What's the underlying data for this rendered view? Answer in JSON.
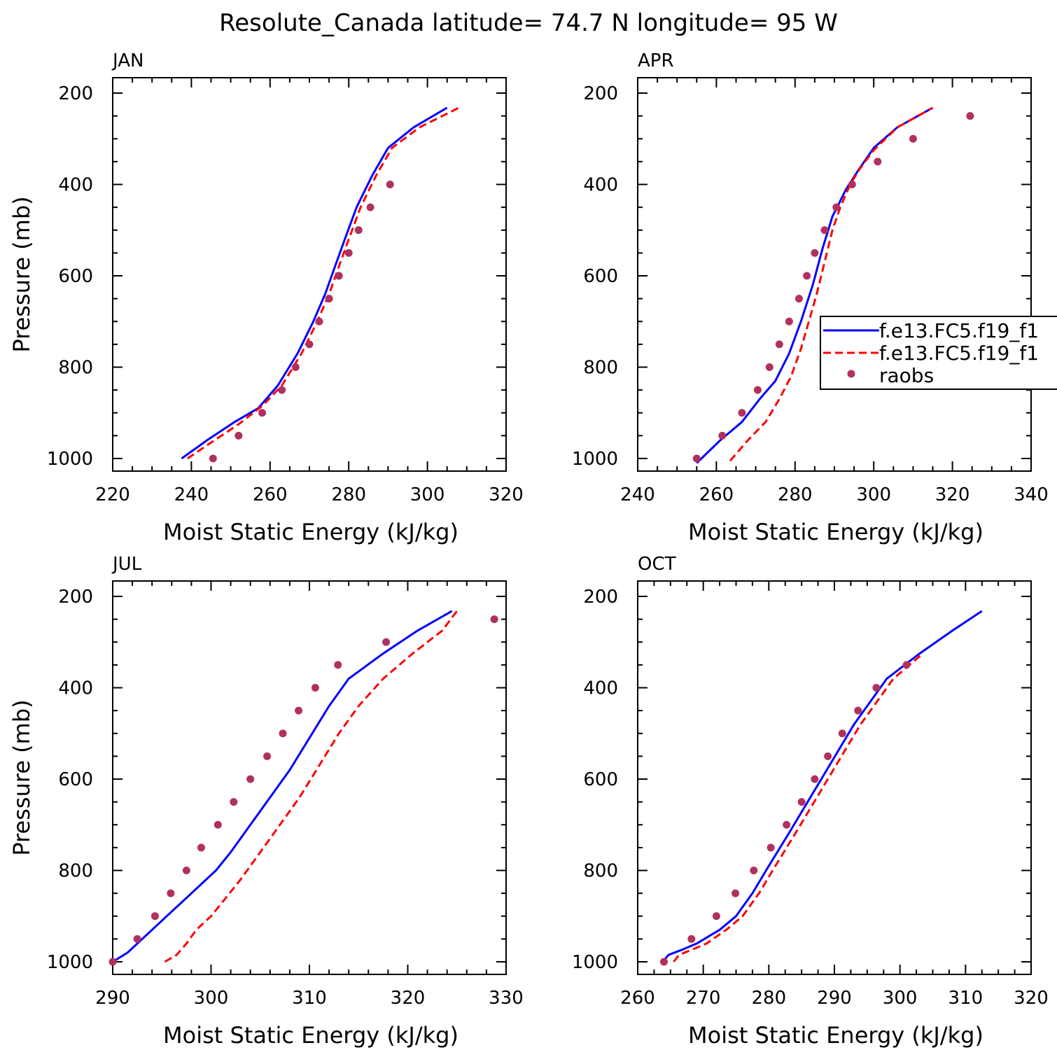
{
  "title": "Resolute_Canada  latitude= 74.7 N longitude= 95 W",
  "colors": {
    "model_a": "#0000ff",
    "model_b": "#ff0000",
    "raobs": "#b03060"
  },
  "legend": {
    "panel": "APR",
    "entries": [
      {
        "label": "f.e13.FC5.f19_f1",
        "style": "solid",
        "color": "#0000ff"
      },
      {
        "label": "f.e13.FC5.f19_f1",
        "style": "dashed",
        "color": "#ff0000"
      },
      {
        "label": "raobs",
        "style": "dot",
        "color": "#b03060"
      }
    ]
  },
  "chart_data": [
    {
      "type": "line",
      "panel_label": "JAN",
      "xlabel": "Moist Static Energy (kJ/kg)",
      "ylabel": "Pressure (mb)",
      "xlim": [
        220,
        320
      ],
      "ylim": [
        200,
        1000
      ],
      "xticks": [
        220,
        240,
        260,
        280,
        300,
        320
      ],
      "yticks": [
        200,
        400,
        600,
        800,
        1000
      ],
      "series": [
        {
          "style": "solid",
          "color": "#0000ff",
          "points": [
            [
              237.5,
              1000
            ],
            [
              244,
              960
            ],
            [
              251,
              920
            ],
            [
              257,
              890
            ],
            [
              262,
              840
            ],
            [
              267,
              770
            ],
            [
              271,
              700
            ],
            [
              274,
              640
            ],
            [
              276.5,
              580
            ],
            [
              279,
              520
            ],
            [
              282,
              450
            ],
            [
              286,
              380
            ],
            [
              290,
              320
            ],
            [
              296.5,
              275
            ],
            [
              305,
              232
            ]
          ]
        },
        {
          "style": "dashed",
          "color": "#ff0000",
          "points": [
            [
              239,
              1000
            ],
            [
              245,
              965
            ],
            [
              252,
              925
            ],
            [
              258,
              885
            ],
            [
              263,
              840
            ],
            [
              268,
              770
            ],
            [
              272,
              700
            ],
            [
              275,
              640
            ],
            [
              277.5,
              580
            ],
            [
              280,
              520
            ],
            [
              283,
              450
            ],
            [
              287,
              380
            ],
            [
              291,
              320
            ],
            [
              298,
              275
            ],
            [
              308,
              232
            ]
          ]
        },
        {
          "style": "dot",
          "color": "#b03060",
          "points": [
            [
              245.5,
              1000
            ],
            [
              252,
              950
            ],
            [
              258,
              900
            ],
            [
              263,
              850
            ],
            [
              266.5,
              800
            ],
            [
              270,
              750
            ],
            [
              272.5,
              700
            ],
            [
              275,
              650
            ],
            [
              277.5,
              600
            ],
            [
              280,
              550
            ],
            [
              282.5,
              500
            ],
            [
              285.5,
              450
            ],
            [
              290.5,
              400
            ]
          ]
        }
      ]
    },
    {
      "type": "line",
      "panel_label": "APR",
      "xlabel": "Moist Static Energy (kJ/kg)",
      "ylabel": "",
      "xlim": [
        240,
        340
      ],
      "ylim": [
        200,
        1000
      ],
      "xticks": [
        240,
        260,
        280,
        300,
        320,
        340
      ],
      "yticks": [
        200,
        400,
        600,
        800,
        1000
      ],
      "series": [
        {
          "style": "solid",
          "color": "#0000ff",
          "points": [
            [
              255,
              1010
            ],
            [
              261,
              960
            ],
            [
              266.5,
              920
            ],
            [
              271,
              870
            ],
            [
              275,
              830
            ],
            [
              278.5,
              770
            ],
            [
              281.5,
              700
            ],
            [
              284.5,
              620
            ],
            [
              287,
              540
            ],
            [
              289.5,
              470
            ],
            [
              293,
              410
            ],
            [
              296,
              370
            ],
            [
              300,
              320
            ],
            [
              306,
              275
            ],
            [
              315,
              232
            ]
          ]
        },
        {
          "style": "dashed",
          "color": "#ff0000",
          "points": [
            [
              263.5,
              1005
            ],
            [
              268,
              960
            ],
            [
              272.5,
              920
            ],
            [
              276,
              870
            ],
            [
              279,
              820
            ],
            [
              281.5,
              760
            ],
            [
              283.5,
              700
            ],
            [
              285.5,
              640
            ],
            [
              287.5,
              570
            ],
            [
              289.5,
              500
            ],
            [
              291.5,
              450
            ],
            [
              294,
              400
            ],
            [
              296.5,
              365
            ],
            [
              300,
              325
            ],
            [
              306,
              275
            ],
            [
              315,
              232
            ]
          ]
        },
        {
          "style": "dot",
          "color": "#b03060",
          "points": [
            [
              255,
              1000
            ],
            [
              261.5,
              950
            ],
            [
              266.5,
              900
            ],
            [
              270.5,
              850
            ],
            [
              273.5,
              800
            ],
            [
              276,
              750
            ],
            [
              278.5,
              700
            ],
            [
              281,
              650
            ],
            [
              283,
              600
            ],
            [
              285,
              550
            ],
            [
              287.5,
              500
            ],
            [
              290.5,
              450
            ],
            [
              294.5,
              400
            ],
            [
              301,
              350
            ],
            [
              310,
              300
            ],
            [
              324.5,
              250
            ]
          ]
        }
      ]
    },
    {
      "type": "line",
      "panel_label": "JUL",
      "xlabel": "Moist Static Energy (kJ/kg)",
      "ylabel": "Pressure (mb)",
      "xlim": [
        290,
        330
      ],
      "ylim": [
        200,
        1000
      ],
      "xticks": [
        290,
        300,
        310,
        320,
        330
      ],
      "yticks": [
        200,
        400,
        600,
        800,
        1000
      ],
      "series": [
        {
          "style": "solid",
          "color": "#0000ff",
          "points": [
            [
              290,
              1000
            ],
            [
              291.5,
              980
            ],
            [
              293,
              950
            ],
            [
              294.5,
              920
            ],
            [
              296,
              890
            ],
            [
              297.5,
              860
            ],
            [
              299,
              830
            ],
            [
              300.5,
              800
            ],
            [
              302,
              760
            ],
            [
              304,
              700
            ],
            [
              306,
              640
            ],
            [
              308,
              580
            ],
            [
              310,
              510
            ],
            [
              312,
              440
            ],
            [
              314,
              380
            ],
            [
              317.5,
              325
            ],
            [
              321,
              275
            ],
            [
              324.5,
              232
            ]
          ]
        },
        {
          "style": "dashed",
          "color": "#ff0000",
          "points": [
            [
              295.3,
              1000
            ],
            [
              296.5,
              985
            ],
            [
              297.5,
              960
            ],
            [
              298.5,
              930
            ],
            [
              300,
              900
            ],
            [
              301.5,
              860
            ],
            [
              303,
              820
            ],
            [
              305,
              760
            ],
            [
              307,
              700
            ],
            [
              309,
              640
            ],
            [
              311,
              570
            ],
            [
              313,
              500
            ],
            [
              315,
              440
            ],
            [
              317.5,
              380
            ],
            [
              320.5,
              325
            ],
            [
              323.5,
              275
            ],
            [
              325,
              232
            ]
          ]
        },
        {
          "style": "dot",
          "color": "#b03060",
          "points": [
            [
              290,
              1000
            ],
            [
              292.5,
              950
            ],
            [
              294.3,
              900
            ],
            [
              295.9,
              850
            ],
            [
              297.5,
              800
            ],
            [
              299,
              750
            ],
            [
              300.7,
              700
            ],
            [
              302.3,
              650
            ],
            [
              304,
              600
            ],
            [
              305.7,
              550
            ],
            [
              307.3,
              500
            ],
            [
              308.9,
              450
            ],
            [
              310.6,
              400
            ],
            [
              312.9,
              350
            ],
            [
              317.8,
              300
            ],
            [
              328.8,
              250
            ]
          ]
        }
      ]
    },
    {
      "type": "line",
      "panel_label": "OCT",
      "xlabel": "Moist Static Energy (kJ/kg)",
      "ylabel": "",
      "xlim": [
        260,
        320
      ],
      "ylim": [
        200,
        1000
      ],
      "xticks": [
        260,
        270,
        280,
        290,
        300,
        310,
        320
      ],
      "yticks": [
        200,
        400,
        600,
        800,
        1000
      ],
      "series": [
        {
          "style": "solid",
          "color": "#0000ff",
          "points": [
            [
              263.8,
              1000
            ],
            [
              264.7,
              985
            ],
            [
              266.5,
              975
            ],
            [
              269,
              960
            ],
            [
              272.5,
              930
            ],
            [
              275,
              900
            ],
            [
              277.5,
              850
            ],
            [
              280,
              790
            ],
            [
              283,
              720
            ],
            [
              285.5,
              660
            ],
            [
              288,
              600
            ],
            [
              290.5,
              540
            ],
            [
              293,
              480
            ],
            [
              295.5,
              430
            ],
            [
              298,
              380
            ],
            [
              303,
              325
            ],
            [
              308,
              275
            ],
            [
              312.5,
              232
            ]
          ]
        },
        {
          "style": "dashed",
          "color": "#ff0000",
          "points": [
            [
              265.5,
              1000
            ],
            [
              266.3,
              985
            ],
            [
              268,
              975
            ],
            [
              270.5,
              960
            ],
            [
              273.5,
              930
            ],
            [
              276,
              900
            ],
            [
              278.5,
              850
            ],
            [
              281,
              790
            ],
            [
              284,
              720
            ],
            [
              286.5,
              660
            ],
            [
              289,
              600
            ],
            [
              291.5,
              540
            ],
            [
              294,
              480
            ],
            [
              296.5,
              430
            ],
            [
              299,
              380
            ],
            [
              303.5,
              325
            ]
          ]
        },
        {
          "style": "dot",
          "color": "#b03060",
          "points": [
            [
              264,
              1000
            ],
            [
              268.2,
              950
            ],
            [
              272,
              900
            ],
            [
              274.9,
              850
            ],
            [
              277.7,
              800
            ],
            [
              280.3,
              750
            ],
            [
              282.7,
              700
            ],
            [
              285,
              650
            ],
            [
              287,
              600
            ],
            [
              289,
              550
            ],
            [
              291.2,
              500
            ],
            [
              293.6,
              450
            ],
            [
              296.4,
              400
            ],
            [
              301,
              350
            ]
          ]
        }
      ]
    }
  ]
}
